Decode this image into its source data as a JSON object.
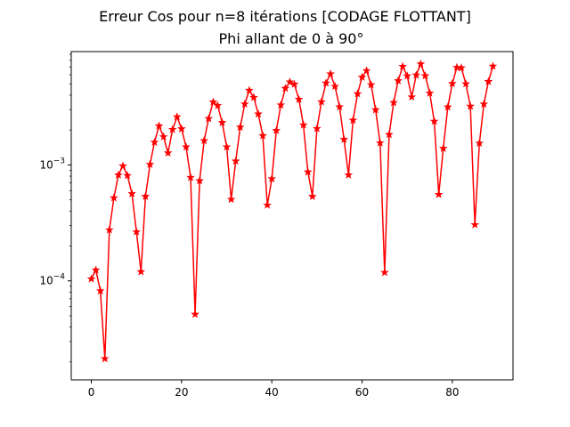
{
  "chart_data": {
    "type": "line",
    "title": "Erreur Cos pour n=8 itérations [CODAGE FLOTTANT]",
    "subtitle": "Phi allant de 0 à 90°",
    "xlabel": "",
    "ylabel": "",
    "yscale": "log",
    "xlim": [
      -4.45,
      93.45
    ],
    "ylim": [
      1.4e-05,
      0.0095
    ],
    "grid": false,
    "x_ticks": [
      0,
      20,
      40,
      60,
      80
    ],
    "y_ticks": [
      {
        "value": 0.0001,
        "base": "10",
        "exp": "−4"
      },
      {
        "value": 0.001,
        "base": "10",
        "exp": "−3"
      }
    ],
    "series": [
      {
        "color": "#ff0000",
        "marker": "star",
        "x": [
          0,
          1,
          2,
          3,
          4,
          5,
          6,
          7,
          8,
          9,
          10,
          11,
          12,
          13,
          14,
          15,
          16,
          17,
          18,
          19,
          20,
          21,
          22,
          23,
          24,
          25,
          26,
          27,
          28,
          29,
          30,
          31,
          32,
          33,
          34,
          35,
          36,
          37,
          38,
          39,
          40,
          41,
          42,
          43,
          44,
          45,
          46,
          47,
          48,
          49,
          50,
          51,
          52,
          53,
          54,
          55,
          56,
          57,
          58,
          59,
          60,
          61,
          62,
          63,
          64,
          65,
          66,
          67,
          68,
          69,
          70,
          71,
          72,
          73,
          74,
          75,
          76,
          77,
          78,
          79,
          80,
          81,
          82,
          83,
          84,
          85,
          86,
          87,
          88,
          89
        ],
        "values": [
          0.000104,
          0.000124,
          8.2e-05,
          2.13e-05,
          0.000275,
          0.00052,
          0.00082,
          0.00098,
          0.00081,
          0.000565,
          0.000265,
          0.00012,
          0.000535,
          0.00101,
          0.00157,
          0.00217,
          0.00175,
          0.00127,
          0.00202,
          0.0026,
          0.00205,
          0.00143,
          0.00078,
          5.15e-05,
          0.00073,
          0.00162,
          0.00251,
          0.00349,
          0.00325,
          0.00232,
          0.00143,
          0.000505,
          0.00108,
          0.00212,
          0.00335,
          0.0044,
          0.00382,
          0.00275,
          0.00179,
          0.00045,
          0.00076,
          0.00198,
          0.00329,
          0.00458,
          0.00519,
          0.00497,
          0.00368,
          0.00221,
          0.00087,
          0.000535,
          0.00206,
          0.0035,
          0.00508,
          0.0061,
          0.00476,
          0.00317,
          0.00166,
          0.00082,
          0.00243,
          0.00411,
          0.00571,
          0.0065,
          0.00491,
          0.00299,
          0.00155,
          0.000118,
          0.00183,
          0.00345,
          0.00532,
          0.00708,
          0.00586,
          0.00386,
          0.00596,
          0.00743,
          0.00588,
          0.00416,
          0.00238,
          0.000556,
          0.00139,
          0.00316,
          0.00504,
          0.00693,
          0.00688,
          0.00501,
          0.00321,
          0.000305,
          0.00154,
          0.00335,
          0.00524,
          0.00711
        ]
      }
    ]
  }
}
